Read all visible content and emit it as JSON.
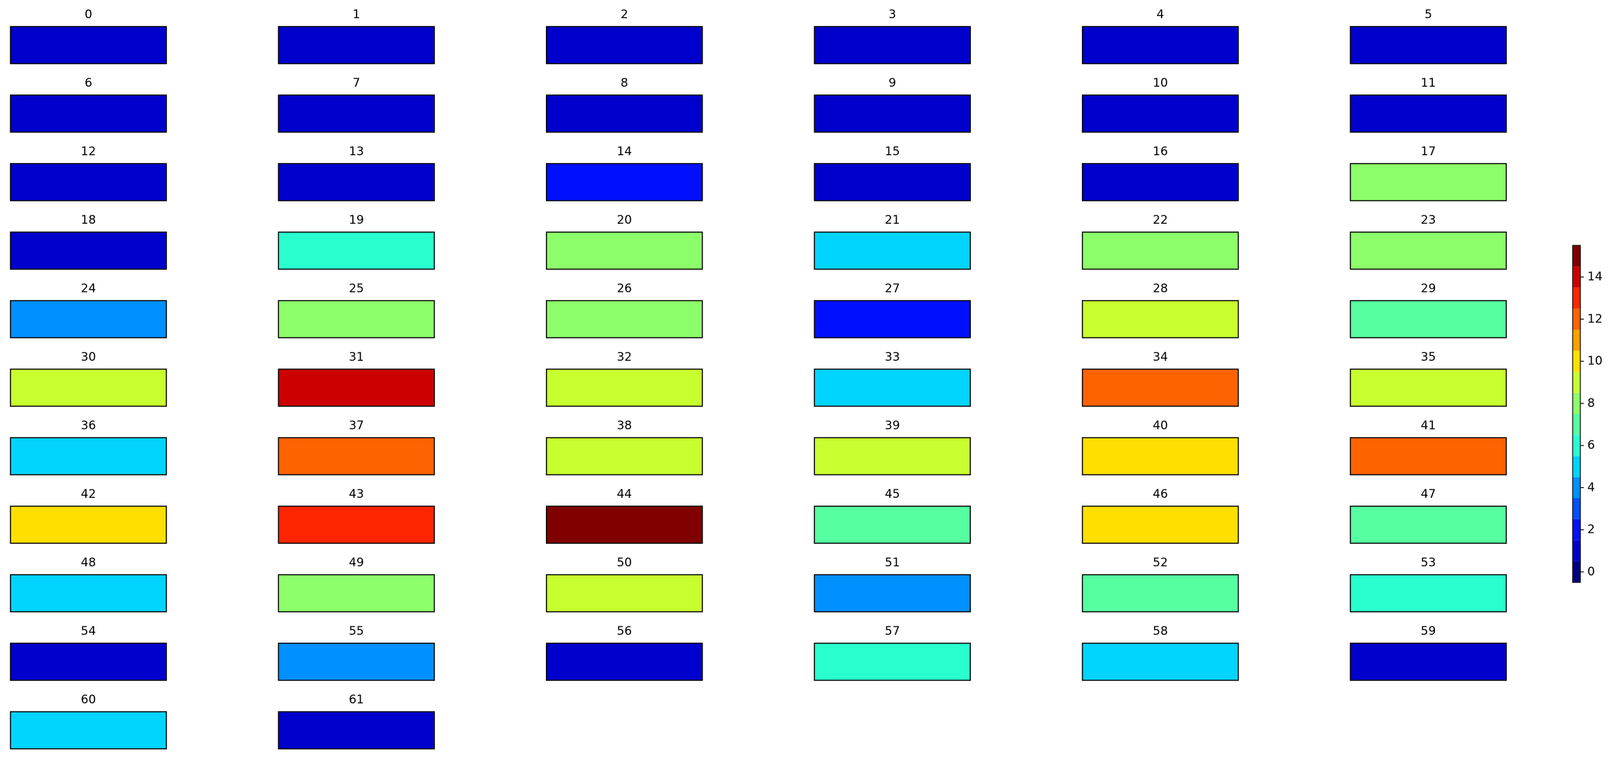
{
  "chart_data": {
    "type": "image-grid",
    "columns": 6,
    "panels": [
      {
        "title": "0",
        "value": 1
      },
      {
        "title": "1",
        "value": 1
      },
      {
        "title": "2",
        "value": 1
      },
      {
        "title": "3",
        "value": 1
      },
      {
        "title": "4",
        "value": 1
      },
      {
        "title": "5",
        "value": 1
      },
      {
        "title": "6",
        "value": 1
      },
      {
        "title": "7",
        "value": 1
      },
      {
        "title": "8",
        "value": 1
      },
      {
        "title": "9",
        "value": 1
      },
      {
        "title": "10",
        "value": 1
      },
      {
        "title": "11",
        "value": 1
      },
      {
        "title": "12",
        "value": 1
      },
      {
        "title": "13",
        "value": 1
      },
      {
        "title": "14",
        "value": 2
      },
      {
        "title": "15",
        "value": 1
      },
      {
        "title": "16",
        "value": 1
      },
      {
        "title": "17",
        "value": 8
      },
      {
        "title": "18",
        "value": 1
      },
      {
        "title": "19",
        "value": 6
      },
      {
        "title": "20",
        "value": 8
      },
      {
        "title": "21",
        "value": 5
      },
      {
        "title": "22",
        "value": 8
      },
      {
        "title": "23",
        "value": 8
      },
      {
        "title": "24",
        "value": 4
      },
      {
        "title": "25",
        "value": 8
      },
      {
        "title": "26",
        "value": 8
      },
      {
        "title": "27",
        "value": 2
      },
      {
        "title": "28",
        "value": 9
      },
      {
        "title": "29",
        "value": 7
      },
      {
        "title": "30",
        "value": 9
      },
      {
        "title": "31",
        "value": 14
      },
      {
        "title": "32",
        "value": 9
      },
      {
        "title": "33",
        "value": 5
      },
      {
        "title": "34",
        "value": 12
      },
      {
        "title": "35",
        "value": 9
      },
      {
        "title": "36",
        "value": 5
      },
      {
        "title": "37",
        "value": 12
      },
      {
        "title": "38",
        "value": 9
      },
      {
        "title": "39",
        "value": 9
      },
      {
        "title": "40",
        "value": 10
      },
      {
        "title": "41",
        "value": 12
      },
      {
        "title": "42",
        "value": 10
      },
      {
        "title": "43",
        "value": 13
      },
      {
        "title": "44",
        "value": 15
      },
      {
        "title": "45",
        "value": 7
      },
      {
        "title": "46",
        "value": 10
      },
      {
        "title": "47",
        "value": 7
      },
      {
        "title": "48",
        "value": 5
      },
      {
        "title": "49",
        "value": 8
      },
      {
        "title": "50",
        "value": 9
      },
      {
        "title": "51",
        "value": 4
      },
      {
        "title": "52",
        "value": 7
      },
      {
        "title": "53",
        "value": 6
      },
      {
        "title": "54",
        "value": 1
      },
      {
        "title": "55",
        "value": 4
      },
      {
        "title": "56",
        "value": 1
      },
      {
        "title": "57",
        "value": 6
      },
      {
        "title": "58",
        "value": 5
      },
      {
        "title": "59",
        "value": 1
      },
      {
        "title": "60",
        "value": 5
      },
      {
        "title": "61",
        "value": 1
      }
    ],
    "colorbar": {
      "ylim": [
        -0.5,
        15.5
      ],
      "yticks": [
        0,
        2,
        4,
        6,
        8,
        10,
        12,
        14
      ],
      "colors": [
        "#000080",
        "#0000cd",
        "#0010ff",
        "#0050ff",
        "#0090ff",
        "#00d4ff",
        "#29ffce",
        "#56ff9f",
        "#8cff6a",
        "#c8ff2e",
        "#ffdf00",
        "#ff9f00",
        "#ff6200",
        "#ff2500",
        "#cd0000",
        "#800000"
      ]
    }
  }
}
